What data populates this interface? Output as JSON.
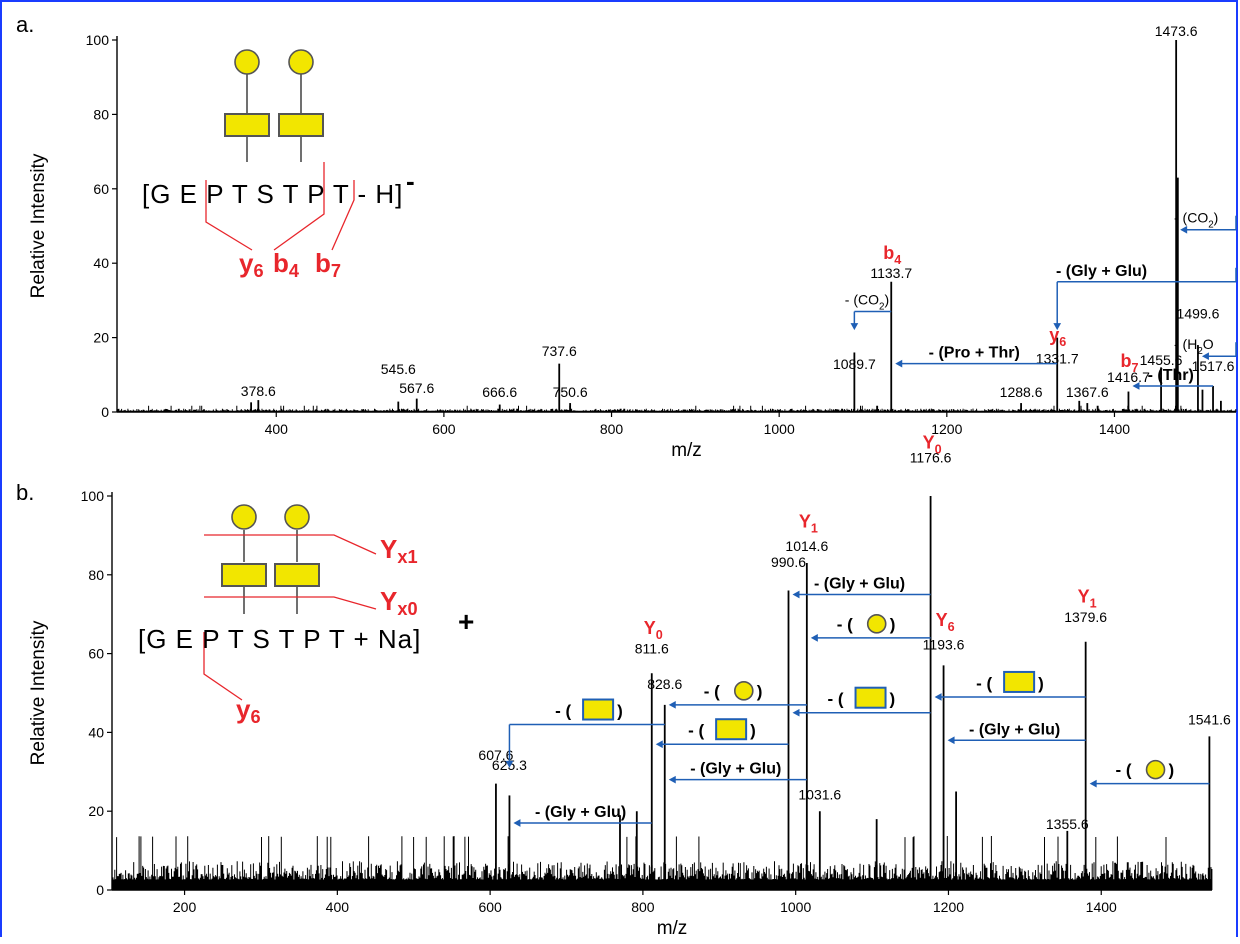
{
  "figure": {
    "accent_blue": "#1f5fb5",
    "label_red": "#e8262c",
    "glycan_yellow": "#f2e600"
  },
  "chart_data": [
    {
      "panel_label": "a.",
      "type": "line",
      "subtype": "mass-spectrum-stick",
      "xlabel": "m/z",
      "ylabel": "Relative Intensity",
      "xlim": [
        210,
        1545
      ],
      "ylim": [
        0,
        100
      ],
      "xticks": [
        400,
        600,
        800,
        1000,
        1200,
        1400
      ],
      "yticks": [
        0,
        20,
        40,
        60,
        80,
        100
      ],
      "grid": false,
      "peaks": [
        {
          "x": 370.0,
          "y": 2.6
        },
        {
          "x": 378.6,
          "y": 3.2
        },
        {
          "x": 545.6,
          "y": 2.8
        },
        {
          "x": 567.6,
          "y": 3.6
        },
        {
          "x": 666.6,
          "y": 2.0
        },
        {
          "x": 737.6,
          "y": 13
        },
        {
          "x": 750.6,
          "y": 2.4
        },
        {
          "x": 1089.7,
          "y": 16
        },
        {
          "x": 1133.7,
          "y": 35
        },
        {
          "x": 1288.6,
          "y": 2.4
        },
        {
          "x": 1331.7,
          "y": 20
        },
        {
          "x": 1358.0,
          "y": 3.0
        },
        {
          "x": 1367.6,
          "y": 2.4
        },
        {
          "x": 1416.7,
          "y": 5.5
        },
        {
          "x": 1455.6,
          "y": 12
        },
        {
          "x": 1473.6,
          "y": 100
        },
        {
          "x": 1475.6,
          "y": 63
        },
        {
          "x": 1499.6,
          "y": 18
        },
        {
          "x": 1505.0,
          "y": 6
        },
        {
          "x": 1517.6,
          "y": 7
        },
        {
          "x": 1527.0,
          "y": 3
        }
      ],
      "peak_labels": [
        {
          "x": 378.6,
          "y": 3.2,
          "text": "378.6"
        },
        {
          "x": 545.6,
          "y": 9.2,
          "text": "545.6"
        },
        {
          "x": 567.6,
          "y": 4.0,
          "text": "567.6"
        },
        {
          "x": 666.6,
          "y": 3.0,
          "text": "666.6"
        },
        {
          "x": 737.6,
          "y": 14.0,
          "text": "737.6"
        },
        {
          "x": 750.6,
          "y": 3.0,
          "text": "750.6"
        },
        {
          "x": 1089.7,
          "y": 10.5,
          "text": "1089.7"
        },
        {
          "x": 1133.7,
          "y": 35.0,
          "text": "1133.7"
        },
        {
          "x": 1288.6,
          "y": 3.0,
          "text": "1288.6"
        },
        {
          "x": 1331.7,
          "y": 12.0,
          "text": "1331.7"
        },
        {
          "x": 1367.6,
          "y": 3.0,
          "text": "1367.6"
        },
        {
          "x": 1416.7,
          "y": 7.0,
          "text": "1416.7"
        },
        {
          "x": 1455.6,
          "y": 11.5,
          "text": "1455.6"
        },
        {
          "x": 1473.6,
          "y": 100.0,
          "text": "1473.6"
        },
        {
          "x": 1499.6,
          "y": 24.0,
          "text": "1499.6"
        },
        {
          "x": 1517.6,
          "y": 10.0,
          "text": "1517.6"
        }
      ],
      "ion_labels": [
        {
          "x": 1133.7,
          "y": 40,
          "text": "b",
          "sub": "4"
        },
        {
          "x": 1331.7,
          "y": 18,
          "text": "y",
          "sub": "6"
        },
        {
          "x": 1416.7,
          "y": 11,
          "text": "b",
          "sub": "7"
        }
      ],
      "loss_annotations": [
        {
          "from": 1133.7,
          "to": 1089.7,
          "level": 27,
          "drop_to": 22,
          "text": "- (CO",
          "sub": "2",
          "tail": ")"
        },
        {
          "from": 1331.7,
          "to": 1133.7,
          "level": 13,
          "text": "- (Pro + Thr)"
        },
        {
          "from": 1545,
          "to": 1473.6,
          "level": 49,
          "text": "- (CO",
          "sub": "2",
          "tail": ")"
        },
        {
          "from": 1545,
          "to": 1331.7,
          "level": 35,
          "drop_to": 22,
          "text": "- (Gly + Glu)"
        },
        {
          "from": 1545,
          "to": 1499.6,
          "level": 15,
          "text": "- (H",
          "sub": "2",
          "tail": "O"
        },
        {
          "from": 1517.6,
          "to": 1416.7,
          "level": 7,
          "text": "- (Thr)"
        }
      ],
      "sequence": "[G E P T S T P T - H]",
      "charge": "-",
      "fragment_labels": [
        {
          "text": "y",
          "sub": "6"
        },
        {
          "text": "b",
          "sub": "4"
        },
        {
          "text": "b",
          "sub": "7"
        }
      ]
    },
    {
      "panel_label": "b.",
      "type": "line",
      "subtype": "mass-spectrum-stick",
      "xlabel": "m/z",
      "ylabel": "Relative Intensity",
      "xlim": [
        105,
        1545
      ],
      "ylim": [
        0,
        100
      ],
      "xticks": [
        200,
        400,
        600,
        800,
        1000,
        1200,
        1400
      ],
      "yticks": [
        0,
        20,
        40,
        60,
        80,
        100
      ],
      "grid": false,
      "peaks": [
        {
          "x": 607.6,
          "y": 27
        },
        {
          "x": 625.3,
          "y": 24
        },
        {
          "x": 770.0,
          "y": 19
        },
        {
          "x": 792.0,
          "y": 20
        },
        {
          "x": 811.6,
          "y": 55
        },
        {
          "x": 828.6,
          "y": 47
        },
        {
          "x": 990.6,
          "y": 76
        },
        {
          "x": 1014.6,
          "y": 83
        },
        {
          "x": 1031.6,
          "y": 20
        },
        {
          "x": 1106.0,
          "y": 18
        },
        {
          "x": 1176.6,
          "y": 100
        },
        {
          "x": 1193.6,
          "y": 57
        },
        {
          "x": 1210.0,
          "y": 25
        },
        {
          "x": 1355.6,
          "y": 15
        },
        {
          "x": 1379.6,
          "y": 63
        },
        {
          "x": 1541.6,
          "y": 39
        }
      ],
      "peak_labels": [
        {
          "x": 607.6,
          "y": 32.0,
          "text": "607.6"
        },
        {
          "x": 625.3,
          "y": 29.5,
          "text": "625.3"
        },
        {
          "x": 811.6,
          "y": 59.0,
          "text": "811.6"
        },
        {
          "x": 828.6,
          "y": 50.0,
          "text": "828.6"
        },
        {
          "x": 990.6,
          "y": 81.0,
          "text": "990.6"
        },
        {
          "x": 1014.6,
          "y": 85.0,
          "text": "1014.6"
        },
        {
          "x": 1031.6,
          "y": 22.0,
          "text": "1031.6"
        },
        {
          "x": 1176.6,
          "y": 107.5,
          "text": "1176.6"
        },
        {
          "x": 1193.6,
          "y": 60.0,
          "text": "1193.6"
        },
        {
          "x": 1355.6,
          "y": 14.5,
          "text": "1355.6"
        },
        {
          "x": 1379.6,
          "y": 67.0,
          "text": "1379.6"
        },
        {
          "x": 1541.6,
          "y": 41.0,
          "text": "1541.6"
        }
      ],
      "ion_labels": [
        {
          "x": 811.6,
          "y": 64,
          "text": "Y",
          "sub": "0"
        },
        {
          "x": 1014.6,
          "y": 91,
          "text": "Y",
          "sub": "1"
        },
        {
          "x": 1176.6,
          "y": 111,
          "text": "Y",
          "sub": "0"
        },
        {
          "x": 1193.6,
          "y": 66,
          "text": "Y",
          "sub": "6"
        },
        {
          "x": 1379.6,
          "y": 72,
          "text": "Y",
          "sub": "1"
        }
      ],
      "loss_annotations": [
        {
          "from": 1176.6,
          "to": 990.6,
          "level": 75,
          "text": "- (Gly + Glu)",
          "glyph": "none"
        },
        {
          "from": 1176.6,
          "to": 1014.6,
          "level": 64,
          "text": "- (",
          "glyph": "circle",
          "tail": ")"
        },
        {
          "from": 1379.6,
          "to": 1176.6,
          "level": 49,
          "text": "- (",
          "glyph": "square",
          "tail": ")"
        },
        {
          "from": 1014.6,
          "to": 828.6,
          "level": 47,
          "text": "- (",
          "glyph": "circle",
          "tail": ")"
        },
        {
          "from": 1176.6,
          "to": 990.6,
          "level": 45,
          "text": "- (",
          "glyph": "square",
          "tail": ")"
        },
        {
          "from": 1379.6,
          "to": 1193.6,
          "level": 38,
          "text": "- (Gly + Glu)",
          "glyph": "none"
        },
        {
          "from": 990.6,
          "to": 811.6,
          "level": 37,
          "text": "- (",
          "glyph": "square",
          "tail": ")"
        },
        {
          "from": 828.6,
          "to": 625.3,
          "level": 42,
          "drop_to": 31,
          "text": "- (",
          "glyph": "square",
          "tail": ")"
        },
        {
          "from": 1014.6,
          "to": 828.6,
          "level": 28,
          "text": "- (Gly + Glu)",
          "glyph": "none"
        },
        {
          "from": 1541.6,
          "to": 1379.6,
          "level": 27,
          "text": "- (",
          "glyph": "circle",
          "tail": ")"
        },
        {
          "from": 811.6,
          "to": 625.3,
          "level": 17,
          "text": "- (Gly + Glu)",
          "glyph": "none"
        }
      ],
      "sequence": "[G E P T S T P T + Na]",
      "charge": "+",
      "fragment_labels": [
        {
          "text": "Y",
          "sub": "x1"
        },
        {
          "text": "Y",
          "sub": "x0"
        },
        {
          "text": "y",
          "sub": "6"
        }
      ]
    }
  ]
}
